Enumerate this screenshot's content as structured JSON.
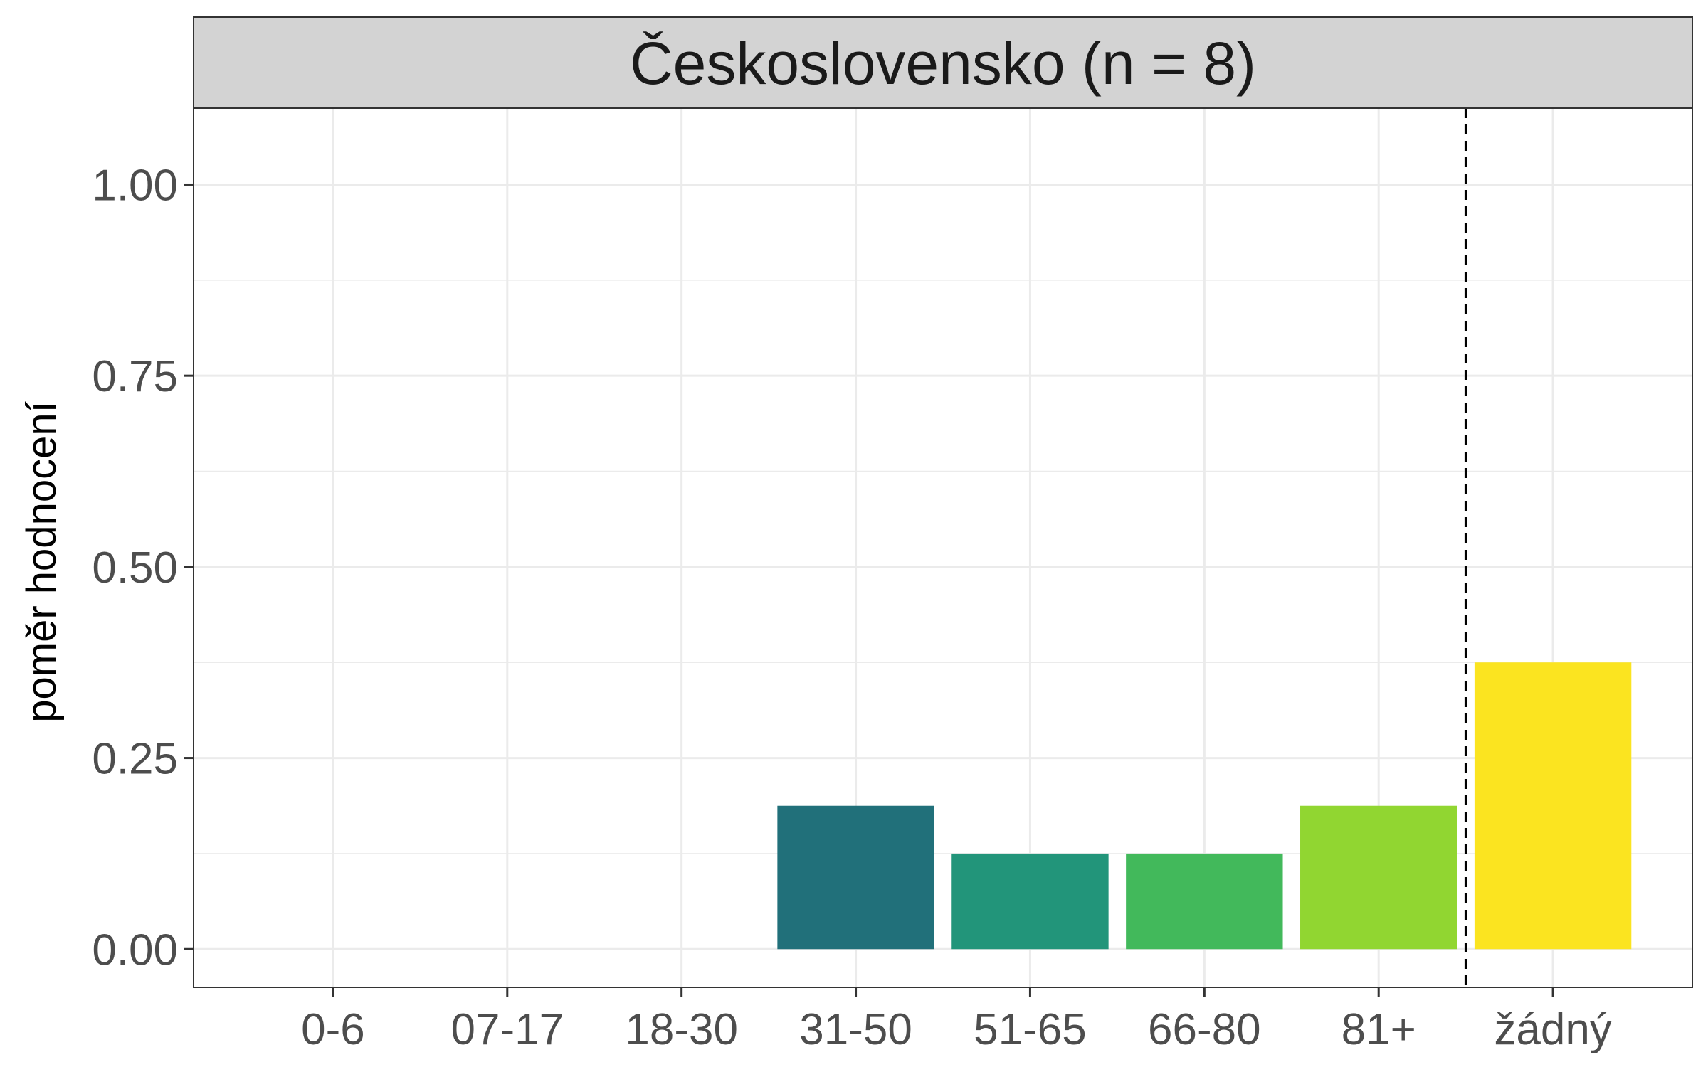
{
  "chart_data": {
    "type": "bar",
    "facet_title": "Československo (n = 8)",
    "ylabel": "poměr hodnocení",
    "xlabel": "",
    "categories": [
      "0-6",
      "07-17",
      "18-30",
      "31-50",
      "51-65",
      "66-80",
      "81+",
      "žádný"
    ],
    "values": [
      0,
      0,
      0,
      0.1875,
      0.125,
      0.125,
      0.1875,
      0.375
    ],
    "bar_colors": {
      "31-50": "#21707a",
      "51-65": "#22957a",
      "66-80": "#42b95b",
      "81+": "#91d631",
      "žádný": "#fbe420"
    },
    "yticks": [
      "0.00",
      "0.25",
      "0.50",
      "0.75",
      "1.00"
    ],
    "ylim": [
      -0.05,
      1.1
    ],
    "reference_line": {
      "between": [
        "81+",
        "žádný"
      ],
      "style": "dashed",
      "color": "#000000"
    },
    "grid": true,
    "legend": "none",
    "colors": {
      "strip_fill": "#d3d3d3",
      "grid": "#ebebeb",
      "panel_border": "#333333",
      "tick_text": "#4d4d4d"
    }
  }
}
